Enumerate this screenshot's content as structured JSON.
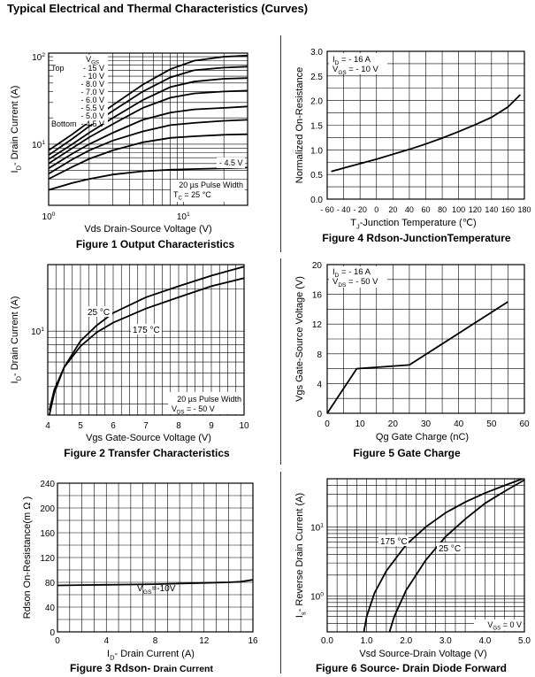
{
  "page_title": "Typical Electrical and Thermal Characteristics (Curves)",
  "chart_data": [
    {
      "id": "fig1",
      "type": "line",
      "caption": "Figure 1 Output Characteristics",
      "xlabel": "Vds Drain-Source Voltage (V)",
      "ylabel_main": "I",
      "ylabel_sub": "D",
      "ylabel_rest": "- Drain Current (A)",
      "x_scale": "log",
      "y_scale": "log",
      "xlim": [
        1,
        30
      ],
      "ylim": [
        2,
        110
      ],
      "x_ticks": [
        {
          "v": 1,
          "label": "10",
          "exp": "0"
        },
        {
          "v": 10,
          "label": "10",
          "exp": "1"
        }
      ],
      "y_ticks": [
        {
          "v": 10,
          "label": "10",
          "exp": "1"
        },
        {
          "v": 100,
          "label": "10",
          "exp": "2"
        }
      ],
      "legend": {
        "header_main": "V",
        "header_sub": "GS",
        "top_label": "Top",
        "bottom_label": "Bottom",
        "entries": [
          "- 15 V",
          "- 10 V",
          "- 8.0 V",
          "- 7.0 V",
          "- 6.0 V",
          "- 5.5 V",
          "- 5.0 V",
          "- 4.5 V"
        ]
      },
      "curve_label": "- 4.5 V",
      "notes": [
        "20 µs Pulse Width"
      ],
      "tc_main": "T",
      "tc_sub": "C",
      "tc_rest": " = 25 °C",
      "series": [
        {
          "x": [
            1,
            1.5,
            2,
            3,
            5,
            8,
            12,
            20,
            30
          ],
          "y": [
            8.5,
            13,
            18,
            28,
            48,
            72,
            90,
            100,
            103
          ]
        },
        {
          "x": [
            1,
            1.5,
            2,
            3,
            5,
            8,
            12,
            20,
            30
          ],
          "y": [
            7.5,
            11.5,
            16,
            24,
            40,
            58,
            70,
            75,
            77
          ]
        },
        {
          "x": [
            1,
            1.5,
            2,
            3,
            5,
            8,
            12,
            20,
            30
          ],
          "y": [
            6.7,
            10,
            13.5,
            20,
            32,
            45,
            52,
            56,
            57
          ]
        },
        {
          "x": [
            1,
            1.5,
            2,
            3,
            5,
            8,
            12,
            20,
            30
          ],
          "y": [
            6,
            9,
            12,
            17,
            26,
            34,
            38,
            40,
            41
          ]
        },
        {
          "x": [
            1,
            1.5,
            2,
            3,
            5,
            8,
            12,
            20,
            30
          ],
          "y": [
            5.3,
            7.8,
            10,
            13.5,
            19,
            23,
            25,
            26,
            27
          ]
        },
        {
          "x": [
            1,
            1.5,
            2,
            3,
            5,
            8,
            12,
            20,
            30
          ],
          "y": [
            4.6,
            6.7,
            8.5,
            11,
            14,
            16.5,
            17.5,
            18.5,
            19
          ]
        },
        {
          "x": [
            1,
            1.5,
            2,
            3,
            5,
            8,
            12,
            20,
            30
          ],
          "y": [
            4,
            5.5,
            6.8,
            8.5,
            10.5,
            11.8,
            12.3,
            12.8,
            13
          ]
        },
        {
          "x": [
            1,
            1.5,
            2,
            3,
            5,
            8,
            12,
            20,
            30
          ],
          "y": [
            3,
            3.6,
            4,
            4.5,
            4.9,
            5.1,
            5.2,
            5.3,
            5.4
          ]
        }
      ]
    },
    {
      "id": "fig2",
      "type": "line",
      "caption": "Figure 2 Transfer Characteristics",
      "xlabel": "Vgs Gate-Source Voltage (V)",
      "ylabel_main": "I",
      "ylabel_sub": "D",
      "ylabel_rest": "- Drain Current (A)",
      "x_scale": "linear",
      "y_scale": "log",
      "xlim": [
        4,
        10
      ],
      "ylim": [
        2.5,
        30
      ],
      "x_ticks": [
        {
          "v": 4,
          "label": "4"
        },
        {
          "v": 5,
          "label": "5"
        },
        {
          "v": 6,
          "label": "6"
        },
        {
          "v": 7,
          "label": "7"
        },
        {
          "v": 8,
          "label": "8"
        },
        {
          "v": 9,
          "label": "9"
        },
        {
          "v": 10,
          "label": "10"
        }
      ],
      "y_ticks": [
        {
          "v": 10,
          "label": "10",
          "exp": "1"
        }
      ],
      "notes": [
        "20 µs Pulse Width"
      ],
      "vds_main": "V",
      "vds_sub": "DS",
      "vds_rest": " = - 50 V",
      "series": [
        {
          "name": "25 °C",
          "x": [
            4.05,
            4.2,
            4.5,
            5,
            5.5,
            6,
            7,
            8,
            9,
            10
          ],
          "y": [
            2.5,
            3.6,
            5.5,
            8.5,
            11,
            13.5,
            17.5,
            21,
            25,
            29
          ]
        },
        {
          "name": "175 °C",
          "x": [
            4.05,
            4.2,
            4.5,
            5,
            5.5,
            6,
            7,
            8,
            9,
            10
          ],
          "y": [
            2.7,
            3.8,
            5.5,
            7.8,
            9.8,
            11.5,
            14.5,
            17.5,
            21,
            24
          ]
        }
      ]
    },
    {
      "id": "fig3",
      "type": "line",
      "caption_main": "Figure 3 Rdson-",
      "caption_small": " Drain Current",
      "xlabel_main": "I",
      "xlabel_sub": "D",
      "xlabel_rest": "- Drain Current (A)",
      "ylabel": "Rdson On-Resistance(m Ω )",
      "x_scale": "linear",
      "y_scale": "linear",
      "xlim": [
        0,
        16
      ],
      "ylim": [
        0,
        240
      ],
      "x_ticks": [
        0,
        4,
        8,
        12,
        16
      ],
      "y_ticks": [
        0,
        40,
        80,
        120,
        160,
        200,
        240
      ],
      "annotation_main": "V",
      "annotation_sub": "GS",
      "annotation_rest": "=-10V",
      "series": [
        {
          "x": [
            0,
            2,
            4,
            6,
            8,
            10,
            12,
            14,
            15,
            16
          ],
          "y": [
            75,
            75.5,
            76,
            76.5,
            77,
            78,
            79,
            80,
            81,
            84
          ]
        }
      ]
    },
    {
      "id": "fig4",
      "type": "line",
      "caption": "Figure 4 Rdson-JunctionTemperature",
      "xlabel_main": "T",
      "xlabel_sub": "J",
      "xlabel_rest": "-Junction Temperature (℃)",
      "ylabel": "Normalized On-Resistance",
      "x_scale": "linear",
      "y_scale": "linear",
      "xlim": [
        -60,
        180
      ],
      "ylim": [
        0,
        3.0
      ],
      "x_ticks": [
        -60,
        -40,
        -20,
        0,
        20,
        40,
        60,
        80,
        100,
        120,
        140,
        160,
        180
      ],
      "x_tick_labels": [
        "- 60",
        "- 40",
        "- 20",
        "0",
        "20",
        "40",
        "60",
        "80",
        "100",
        "120",
        "140",
        "160",
        "180"
      ],
      "y_ticks": [
        0,
        0.5,
        1.0,
        1.5,
        2.0,
        2.5,
        3.0
      ],
      "y_tick_labels": [
        "0.0",
        "0.5",
        "1.0",
        "1.5",
        "2.0",
        "2.5",
        "3.0"
      ],
      "annotations": [
        {
          "main": "I",
          "sub": "D",
          "rest": " = - 16 A"
        },
        {
          "main": "V",
          "sub": "GS",
          "rest": " = - 10 V"
        }
      ],
      "series": [
        {
          "x": [
            -55,
            -40,
            -20,
            0,
            20,
            40,
            60,
            80,
            100,
            120,
            140,
            160,
            175
          ],
          "y": [
            0.56,
            0.63,
            0.72,
            0.81,
            0.91,
            1.01,
            1.12,
            1.24,
            1.37,
            1.51,
            1.66,
            1.87,
            2.12
          ]
        }
      ]
    },
    {
      "id": "fig5",
      "type": "line",
      "caption": "Figure 5 Gate Charge",
      "xlabel": "Qg Gate Charge (nC)",
      "ylabel": "Vgs Gate-Source Voltage (V)",
      "x_scale": "linear",
      "y_scale": "linear",
      "xlim": [
        0,
        60
      ],
      "ylim": [
        0,
        20
      ],
      "x_ticks": [
        0,
        10,
        20,
        30,
        40,
        50,
        60
      ],
      "y_ticks": [
        0,
        4,
        8,
        12,
        16,
        20
      ],
      "annotations": [
        {
          "main": "I",
          "sub": "D",
          "rest": " = - 16 A"
        },
        {
          "main": "V",
          "sub": "DS",
          "rest": " = - 50 V"
        }
      ],
      "series": [
        {
          "x": [
            0,
            9,
            25,
            55
          ],
          "y": [
            0,
            6,
            6.5,
            15
          ]
        }
      ]
    },
    {
      "id": "fig6",
      "type": "line",
      "caption": "Figure 6 Source- Drain Diode Forward",
      "xlabel": "Vsd Source-Drain Voltage (V)",
      "ylabel_main": "I",
      "ylabel_sub": "s",
      "ylabel_rest": "- Reverse Drain Current (A)",
      "x_scale": "linear",
      "y_scale": "log",
      "xlim": [
        0,
        5
      ],
      "ylim": [
        0.3,
        50
      ],
      "x_ticks": [
        0,
        1,
        2,
        3,
        4,
        5
      ],
      "x_tick_labels": [
        "0.0",
        "1.0",
        "2.0",
        "3.0",
        "4.0",
        "5.0"
      ],
      "y_ticks": [
        {
          "v": 1,
          "label": "10",
          "exp": "0"
        },
        {
          "v": 10,
          "label": "10",
          "exp": "1"
        }
      ],
      "vgs_main": "V",
      "vgs_sub": "GS",
      "vgs_rest": " = 0 V",
      "series": [
        {
          "name": "175 °C",
          "x": [
            0.93,
            1.0,
            1.2,
            1.5,
            2.0,
            2.5,
            3.0,
            3.5,
            4.0,
            4.5,
            4.95
          ],
          "y": [
            0.3,
            0.5,
            1.1,
            2.3,
            5.5,
            10,
            16,
            23,
            31,
            40,
            50
          ]
        },
        {
          "name": "25 °C",
          "x": [
            1.58,
            1.7,
            2.0,
            2.5,
            3.0,
            3.5,
            4.0,
            4.5,
            5.0
          ],
          "y": [
            0.3,
            0.5,
            1.2,
            3.3,
            7.2,
            13,
            22,
            33,
            48
          ]
        }
      ]
    }
  ]
}
